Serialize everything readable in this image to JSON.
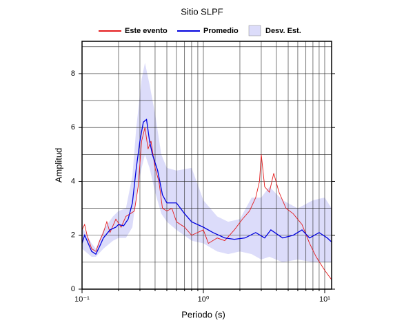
{
  "chart_data": {
    "type": "line",
    "title": "Sitio SLPF",
    "xlabel": "Periodo (s)",
    "ylabel": "Amplitud",
    "xscale": "log",
    "xlim": [
      0.1,
      11.4
    ],
    "ylim": [
      0,
      9.2
    ],
    "xticks": [
      {
        "value": 0.1,
        "label": "10⁻¹"
      },
      {
        "value": 1,
        "label": "10⁰"
      },
      {
        "value": 10,
        "label": "10¹"
      }
    ],
    "xminorticks": [
      0.2,
      0.3,
      0.4,
      0.5,
      0.6,
      0.7,
      0.8,
      0.9,
      2,
      3,
      4,
      5,
      6,
      7,
      8,
      9
    ],
    "yticks": [
      0,
      2,
      4,
      6,
      8
    ],
    "yminorticks": [
      1,
      3,
      5,
      7,
      9
    ],
    "grid": true,
    "legend": "top",
    "series": [
      {
        "name": "Este evento",
        "color": "#e41a1c",
        "x": [
          0.1,
          0.105,
          0.11,
          0.12,
          0.13,
          0.14,
          0.15,
          0.16,
          0.17,
          0.19,
          0.21,
          0.23,
          0.25,
          0.27,
          0.29,
          0.31,
          0.33,
          0.35,
          0.37,
          0.4,
          0.43,
          0.46,
          0.5,
          0.55,
          0.6,
          0.7,
          0.8,
          1.0,
          1.1,
          1.3,
          1.5,
          1.8,
          2.1,
          2.4,
          2.7,
          2.9,
          3.0,
          3.2,
          3.5,
          3.8,
          4.2,
          4.8,
          5.5,
          6.5,
          7.5,
          8.5,
          10,
          11.4
        ],
        "values": [
          2.2,
          2.4,
          2.0,
          1.5,
          1.4,
          1.8,
          2.1,
          2.5,
          2.1,
          2.6,
          2.3,
          2.7,
          2.8,
          2.9,
          3.8,
          5.5,
          6.0,
          5.2,
          5.5,
          4.5,
          4.0,
          3.0,
          2.9,
          3.0,
          2.5,
          2.3,
          2.0,
          2.2,
          1.7,
          1.9,
          1.8,
          2.2,
          2.6,
          2.9,
          3.4,
          4.0,
          5.0,
          3.8,
          3.6,
          4.3,
          3.6,
          3.0,
          2.8,
          2.4,
          1.7,
          1.2,
          0.7,
          0.35
        ]
      },
      {
        "name": "Promedio",
        "color": "#0000dd",
        "x": [
          0.1,
          0.105,
          0.11,
          0.12,
          0.13,
          0.14,
          0.15,
          0.17,
          0.19,
          0.2,
          0.22,
          0.24,
          0.26,
          0.28,
          0.3,
          0.32,
          0.34,
          0.36,
          0.38,
          0.42,
          0.46,
          0.5,
          0.6,
          0.7,
          0.8,
          1.0,
          1.2,
          1.5,
          1.8,
          2.2,
          2.7,
          3.2,
          3.6,
          4.5,
          5.5,
          6.5,
          7.5,
          9.0,
          10.5,
          11.4
        ],
        "values": [
          1.7,
          2.0,
          1.8,
          1.4,
          1.3,
          1.6,
          1.9,
          2.2,
          2.3,
          2.4,
          2.35,
          2.6,
          3.2,
          4.5,
          5.5,
          6.2,
          6.3,
          5.5,
          5.0,
          4.4,
          3.5,
          3.2,
          3.2,
          2.8,
          2.5,
          2.3,
          2.1,
          1.9,
          1.85,
          1.9,
          2.1,
          1.9,
          2.2,
          1.9,
          2.0,
          2.2,
          1.9,
          2.1,
          1.9,
          1.75
        ]
      },
      {
        "name": "Desv. Est.",
        "color": "#dcdcfa",
        "x": [
          0.1,
          0.12,
          0.13,
          0.15,
          0.18,
          0.2,
          0.23,
          0.26,
          0.28,
          0.31,
          0.33,
          0.36,
          0.4,
          0.45,
          0.5,
          0.6,
          0.8,
          1.0,
          1.3,
          1.6,
          2.0,
          2.5,
          3.0,
          3.5,
          4.5,
          6,
          8,
          10,
          11.4
        ],
        "lower": [
          1.5,
          1.2,
          1.2,
          1.5,
          1.8,
          1.9,
          1.9,
          2.3,
          3.5,
          4.5,
          5.0,
          4.5,
          3.6,
          2.8,
          2.5,
          2.2,
          1.8,
          1.7,
          1.4,
          1.3,
          1.4,
          1.3,
          1.1,
          1.2,
          1.0,
          1.1,
          1.0,
          1.0,
          1.0
        ],
        "upper": [
          2.3,
          1.7,
          1.5,
          2.2,
          2.7,
          2.9,
          3.0,
          4.2,
          6.0,
          7.8,
          8.4,
          7.6,
          6.5,
          5.0,
          4.5,
          4.4,
          4.5,
          3.3,
          2.7,
          2.5,
          2.6,
          3.4,
          3.4,
          3.8,
          3.3,
          3.0,
          3.3,
          3.4,
          3.0
        ]
      }
    ]
  }
}
